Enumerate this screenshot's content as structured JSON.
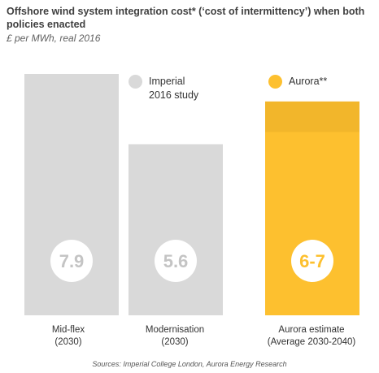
{
  "title": "Offshore wind system integration cost* (‘cost of intermittency’) when both policies enacted",
  "subtitle": "£ per MWh, real 2016",
  "source": "Sources: Imperial College London, Aurora Energy Research",
  "colors": {
    "imperial": "#d9d9d9",
    "aurora": "#fdc02f",
    "aurora_top": "#f2b62b",
    "value_text": "#c4c4c4",
    "aurora_value_text": "#fdc02f"
  },
  "legend": [
    {
      "name": "Imperial",
      "label_lines": [
        "Imperial",
        "2016 study"
      ],
      "color": "#d9d9d9"
    },
    {
      "name": "Aurora**",
      "label_lines": [
        "Aurora**"
      ],
      "color": "#fdc02f"
    }
  ],
  "chart_data": {
    "type": "bar",
    "title": "Offshore wind system integration cost* (‘cost of intermittency’) when both policies enacted",
    "ylabel": "£ per MWh, real 2016",
    "categories": [
      "Mid-flex (2030)",
      "Modernisation (2030)",
      "Aurora estimate (Average 2030-2040)"
    ],
    "category_label_lines": [
      [
        "Mid-flex",
        "(2030)"
      ],
      [
        "Modernisation",
        "(2030)"
      ],
      [
        "Aurora estimate",
        "(Average 2030-2040)"
      ]
    ],
    "values": [
      7.9,
      5.6,
      7
    ],
    "ranges": [
      null,
      null,
      [
        6,
        7
      ]
    ],
    "value_labels": [
      "7.9",
      "5.6",
      "6-7"
    ],
    "series_of_bar": [
      "Imperial",
      "Imperial",
      "Aurora**"
    ],
    "ylim": [
      0,
      7.9
    ],
    "grid": false,
    "legend_position": "top-right"
  }
}
